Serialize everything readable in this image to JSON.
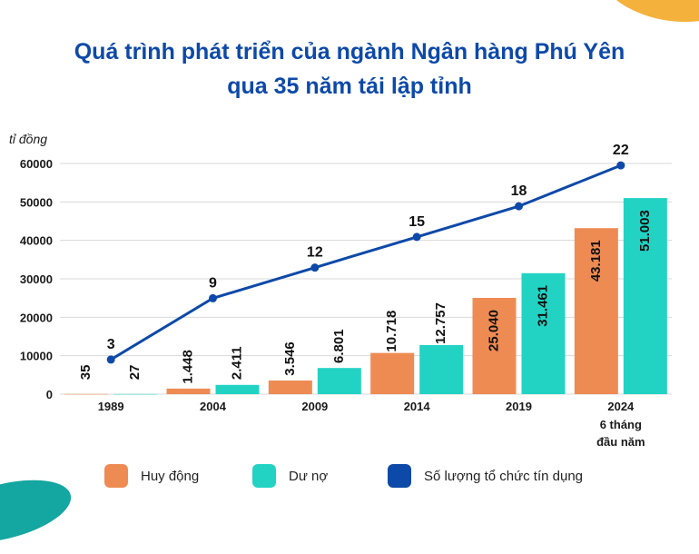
{
  "title": {
    "line1": "Quá trình phát triển của ngành Ngân hàng Phú Yên",
    "line2": "qua 35 năm tái lập tỉnh"
  },
  "colors": {
    "title": "#0d49a8",
    "huy_dong": "#ee8b53",
    "du_no": "#22d3c4",
    "line": "#0d49a8",
    "grid": "#d9d9d9",
    "axis_text": "#1a1a1a"
  },
  "chart_data": {
    "type": "bar",
    "y_unit_label": "tỉ đồng",
    "ylim": [
      0,
      60000
    ],
    "yticks": [
      "0",
      "10000",
      "20000",
      "30000",
      "40000",
      "50000",
      "60000"
    ],
    "categories": [
      "1989",
      "2004",
      "2009",
      "2014",
      "2019",
      "2024"
    ],
    "category_sublabel": "6 tháng\nđầu năm",
    "grid": "horizontal",
    "legend_position": "bottom",
    "series": [
      {
        "name": "Huy động",
        "kind": "bar",
        "values": [
          35,
          1448,
          3546,
          10718,
          25040,
          43181
        ],
        "labels": [
          "35",
          "1.448",
          "3.546",
          "10.718",
          "25.040",
          "43.181"
        ]
      },
      {
        "name": "Dư nợ",
        "kind": "bar",
        "values": [
          27,
          2411,
          6801,
          12757,
          31461,
          51003
        ],
        "labels": [
          "27",
          "2.411",
          "6.801",
          "12.757",
          "31.461",
          "51.003"
        ]
      },
      {
        "name": "Số lượng tổ chức tín dụng",
        "kind": "line",
        "values": [
          3,
          9,
          12,
          15,
          18,
          22
        ],
        "labels": [
          "3",
          "9",
          "12",
          "15",
          "18",
          "22"
        ]
      }
    ]
  }
}
